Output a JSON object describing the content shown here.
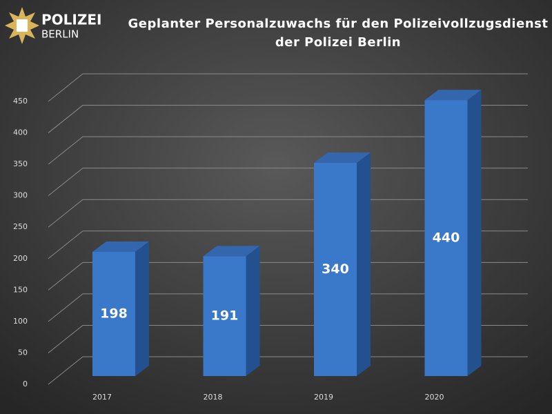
{
  "logo": {
    "line1": "POLIZEI",
    "line2": "BERLIN"
  },
  "chart_data": {
    "type": "bar3d",
    "title": [
      "Geplanter Personalzuwachs für den Polizeivollzugsdienst",
      "der Polizei Berlin"
    ],
    "categories": [
      "2017",
      "2018",
      "2019",
      "2020"
    ],
    "values": [
      198,
      191,
      340,
      440
    ],
    "color": "#3a78c9",
    "ylim": [
      0,
      450
    ],
    "yticks": [
      0,
      50,
      100,
      150,
      200,
      250,
      300,
      350,
      400,
      450
    ],
    "grid": true
  }
}
